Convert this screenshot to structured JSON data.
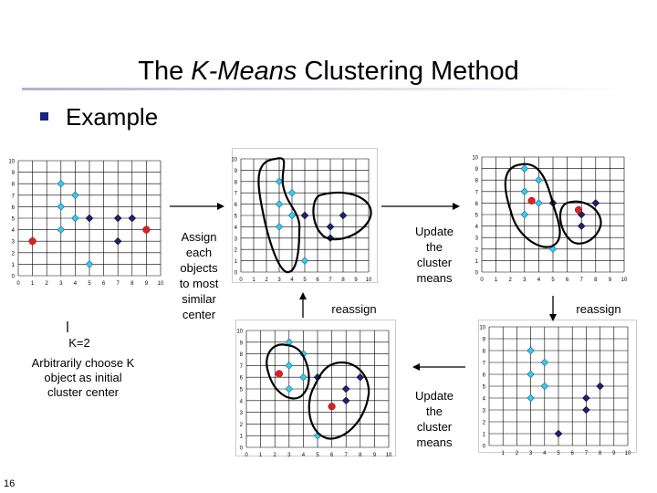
{
  "slide": {
    "title_prefix": "The ",
    "title_italic": "K-Means",
    "title_suffix": " Clustering Method",
    "bullet_text": "Example",
    "slide_number": "16",
    "accent_color": "#b8aed0"
  },
  "labels": {
    "assign": "Assign\neach\nobjects\nto most\nsimilar\ncenter",
    "update_top": "Update\nthe\ncluster\nmeans",
    "reassign_mid": "reassign",
    "reassign_right": "reassign",
    "k": "K=2",
    "arbitrarily": "Arbitrarily choose K\nobject as initial\ncluster center",
    "update_bottom": "Update\nthe\ncluster\nmeans"
  },
  "colors": {
    "cyan": "#33ccee",
    "navy": "#1a237e",
    "red": "#dd2222",
    "grid": "#000000"
  },
  "chart_data": [
    {
      "type": "scatter",
      "id": "p1",
      "xlim": [
        0,
        10
      ],
      "ylim": [
        0,
        10
      ],
      "x_ticks": [
        "0",
        "1",
        "2",
        "3",
        "4",
        "5",
        "6",
        "7",
        "8",
        "9",
        "10"
      ],
      "y_ticks": [
        "0",
        "1",
        "2",
        "3",
        "4",
        "5",
        "6",
        "7",
        "8",
        "9",
        "10"
      ],
      "points": [
        {
          "x": 3,
          "y": 8,
          "c": "cyan"
        },
        {
          "x": 4,
          "y": 7,
          "c": "cyan"
        },
        {
          "x": 3,
          "y": 6,
          "c": "cyan"
        },
        {
          "x": 3,
          "y": 4,
          "c": "cyan"
        },
        {
          "x": 4,
          "y": 5,
          "c": "cyan"
        },
        {
          "x": 5,
          "y": 1,
          "c": "cyan"
        },
        {
          "x": 5,
          "y": 5,
          "c": "navy"
        },
        {
          "x": 7,
          "y": 5,
          "c": "navy"
        },
        {
          "x": 8,
          "y": 5,
          "c": "navy"
        },
        {
          "x": 7,
          "y": 3,
          "c": "navy"
        },
        {
          "x": 1,
          "y": 3,
          "c": "red"
        },
        {
          "x": 9,
          "y": 4,
          "c": "red"
        }
      ]
    },
    {
      "type": "scatter",
      "id": "p2",
      "xlim": [
        0,
        10
      ],
      "ylim": [
        0,
        10
      ],
      "x_ticks": [
        "0",
        "1",
        "2",
        "3",
        "4",
        "5",
        "6",
        "7",
        "8",
        "9",
        "10"
      ],
      "y_ticks": [
        "0",
        "1",
        "2",
        "3",
        "4",
        "5",
        "6",
        "7",
        "8",
        "9",
        "10"
      ],
      "points": [
        {
          "x": 3,
          "y": 8,
          "c": "cyan"
        },
        {
          "x": 4,
          "y": 7,
          "c": "cyan"
        },
        {
          "x": 3,
          "y": 6,
          "c": "cyan"
        },
        {
          "x": 3,
          "y": 4,
          "c": "cyan"
        },
        {
          "x": 4,
          "y": 5,
          "c": "cyan"
        },
        {
          "x": 5,
          "y": 1,
          "c": "cyan"
        },
        {
          "x": 5,
          "y": 5,
          "c": "navy"
        },
        {
          "x": 7,
          "y": 4,
          "c": "navy"
        },
        {
          "x": 8,
          "y": 5,
          "c": "navy"
        },
        {
          "x": 7,
          "y": 3,
          "c": "navy"
        }
      ]
    },
    {
      "type": "scatter",
      "id": "p3",
      "xlim": [
        0,
        10
      ],
      "ylim": [
        0,
        10
      ],
      "x_ticks": [
        "0",
        "1",
        "2",
        "3",
        "4",
        "5",
        "6",
        "7",
        "8",
        "9",
        "10"
      ],
      "y_ticks": [
        "0",
        "1",
        "2",
        "3",
        "4",
        "5",
        "6",
        "7",
        "8",
        "9",
        "10"
      ],
      "points": [
        {
          "x": 3,
          "y": 9,
          "c": "cyan"
        },
        {
          "x": 4,
          "y": 8,
          "c": "cyan"
        },
        {
          "x": 3,
          "y": 7,
          "c": "cyan"
        },
        {
          "x": 3,
          "y": 5,
          "c": "cyan"
        },
        {
          "x": 4,
          "y": 6,
          "c": "cyan"
        },
        {
          "x": 5,
          "y": 2,
          "c": "cyan"
        },
        {
          "x": 5,
          "y": 6,
          "c": "navy"
        },
        {
          "x": 7,
          "y": 5,
          "c": "navy"
        },
        {
          "x": 8,
          "y": 6,
          "c": "navy"
        },
        {
          "x": 7,
          "y": 4,
          "c": "navy"
        },
        {
          "x": 3.5,
          "y": 6.2,
          "c": "red"
        },
        {
          "x": 6.8,
          "y": 5.4,
          "c": "red"
        }
      ]
    },
    {
      "type": "scatter",
      "id": "p4",
      "xlim": [
        0,
        10
      ],
      "ylim": [
        0,
        10
      ],
      "x_ticks": [
        "0",
        "1",
        "2",
        "3",
        "4",
        "5",
        "6",
        "7",
        "8",
        "9",
        "10"
      ],
      "y_ticks": [
        "0",
        "1",
        "2",
        "3",
        "4",
        "5",
        "6",
        "7",
        "8",
        "9",
        "10"
      ],
      "points": [
        {
          "x": 3,
          "y": 9,
          "c": "cyan"
        },
        {
          "x": 4,
          "y": 8,
          "c": "cyan"
        },
        {
          "x": 3,
          "y": 7,
          "c": "cyan"
        },
        {
          "x": 3,
          "y": 5,
          "c": "cyan"
        },
        {
          "x": 4,
          "y": 6,
          "c": "cyan"
        },
        {
          "x": 5,
          "y": 1,
          "c": "cyan"
        },
        {
          "x": 5,
          "y": 6,
          "c": "navy"
        },
        {
          "x": 7,
          "y": 5,
          "c": "navy"
        },
        {
          "x": 8,
          "y": 6,
          "c": "navy"
        },
        {
          "x": 7,
          "y": 4,
          "c": "navy"
        },
        {
          "x": 2.3,
          "y": 6.3,
          "c": "red"
        },
        {
          "x": 6.0,
          "y": 3.5,
          "c": "red"
        }
      ]
    },
    {
      "type": "scatter",
      "id": "p5",
      "xlim": [
        0,
        10
      ],
      "ylim": [
        0,
        10
      ],
      "x_ticks": [
        "1",
        "2",
        "3",
        "4",
        "5",
        "6",
        "7",
        "8",
        "9",
        "10"
      ],
      "y_ticks": [
        "0",
        "1",
        "2",
        "3",
        "4",
        "5",
        "6",
        "7",
        "8",
        "9",
        "10"
      ],
      "points": [
        {
          "x": 3,
          "y": 8,
          "c": "cyan"
        },
        {
          "x": 4,
          "y": 7,
          "c": "cyan"
        },
        {
          "x": 3,
          "y": 6,
          "c": "cyan"
        },
        {
          "x": 3,
          "y": 4,
          "c": "cyan"
        },
        {
          "x": 4,
          "y": 5,
          "c": "cyan"
        },
        {
          "x": 5,
          "y": 1,
          "c": "navy"
        },
        {
          "x": 7,
          "y": 4,
          "c": "navy"
        },
        {
          "x": 8,
          "y": 5,
          "c": "navy"
        },
        {
          "x": 7,
          "y": 3,
          "c": "navy"
        }
      ]
    }
  ]
}
